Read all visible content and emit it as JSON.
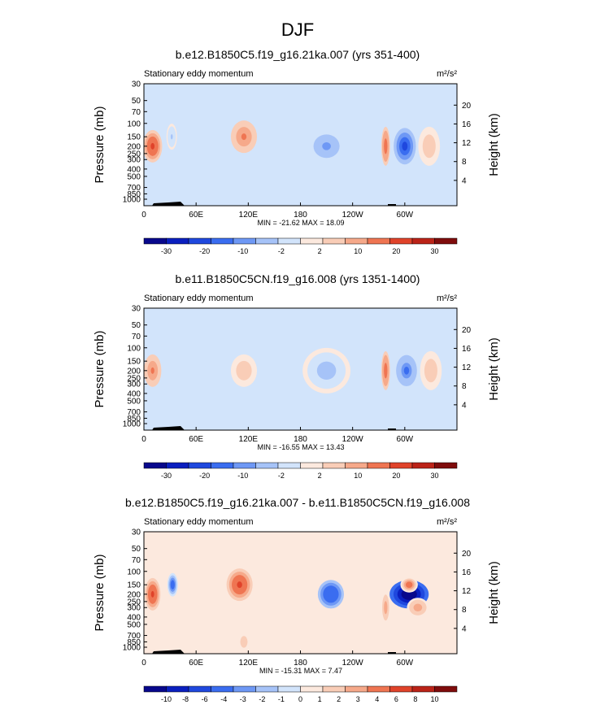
{
  "page_title": "DJF",
  "colors": {
    "scale": [
      "#08088c",
      "#0a1fbf",
      "#1f48de",
      "#3a6df0",
      "#6e98f5",
      "#a6c3f8",
      "#d2e4fb",
      "#fce9de",
      "#f9cdb7",
      "#f6a98a",
      "#ef7552",
      "#e0432a",
      "#bb2318",
      "#7f0c0c"
    ],
    "land": "#000000"
  },
  "chart_data": [
    {
      "type": "heatmap",
      "title": "b.e12.B1850C5.f19_g16.21ka.007 (yrs 351-400)",
      "subtitle_left": "Stationary eddy momentum",
      "units": "m²/s²",
      "ylabel": "Pressure (mb)",
      "ylabel_right": "Height (km)",
      "yticks": [
        "30",
        "50",
        "70",
        "100",
        "150",
        "200",
        "250",
        "300",
        "400",
        "500",
        "700",
        "850",
        "1000"
      ],
      "yticks_right": [
        "20",
        "16",
        "12",
        "8",
        "4"
      ],
      "xticks": [
        "0",
        "60E",
        "120E",
        "180",
        "120W",
        "60W"
      ],
      "stats": "MIN = -21.62  MAX =  18.09",
      "colorbar_labels": [
        "-30",
        "-20",
        "-10",
        "-2",
        "2",
        "10",
        "20",
        "30"
      ],
      "features": [
        {
          "lon": 10,
          "p": 200,
          "value": 18,
          "width_deg": 22,
          "height_lev": 2.5
        },
        {
          "lon": 32,
          "p": 150,
          "value": -6,
          "width_deg": 12,
          "height_lev": 2
        },
        {
          "lon": 115,
          "p": 150,
          "value": 12,
          "width_deg": 30,
          "height_lev": 2.5
        },
        {
          "lon": 210,
          "p": 200,
          "value": -11,
          "width_deg": 50,
          "height_lev": 3
        },
        {
          "lon": 278,
          "p": 200,
          "value": 14,
          "width_deg": 10,
          "height_lev": 3
        },
        {
          "lon": 300,
          "p": 200,
          "value": -21,
          "width_deg": 32,
          "height_lev": 3.5
        },
        {
          "lon": 328,
          "p": 200,
          "value": 5,
          "width_deg": 25,
          "height_lev": 3
        }
      ]
    },
    {
      "type": "heatmap",
      "title": "b.e11.B1850C5CN.f19_g16.008 (yrs 1351-1400)",
      "subtitle_left": "Stationary eddy momentum",
      "units": "m²/s²",
      "ylabel": "Pressure (mb)",
      "ylabel_right": "Height (km)",
      "yticks": [
        "30",
        "50",
        "70",
        "100",
        "150",
        "200",
        "250",
        "300",
        "400",
        "500",
        "700",
        "850",
        "1000"
      ],
      "yticks_right": [
        "20",
        "16",
        "12",
        "8",
        "4"
      ],
      "xticks": [
        "0",
        "60E",
        "120E",
        "180",
        "120W",
        "60W"
      ],
      "stats": "MIN = -16.55  MAX =  13.43",
      "colorbar_labels": [
        "-30",
        "-20",
        "-10",
        "-2",
        "2",
        "10",
        "20",
        "30"
      ],
      "features": [
        {
          "lon": 10,
          "p": 200,
          "value": 12,
          "width_deg": 20,
          "height_lev": 2.5
        },
        {
          "lon": 115,
          "p": 200,
          "value": 4,
          "width_deg": 30,
          "height_lev": 2.5
        },
        {
          "lon": 210,
          "p": 200,
          "value": -8,
          "width_deg": 55,
          "height_lev": 3.5
        },
        {
          "lon": 278,
          "p": 200,
          "value": 13,
          "width_deg": 10,
          "height_lev": 3
        },
        {
          "lon": 302,
          "p": 200,
          "value": -16,
          "width_deg": 30,
          "height_lev": 3
        },
        {
          "lon": 330,
          "p": 200,
          "value": 4,
          "width_deg": 25,
          "height_lev": 3
        }
      ]
    },
    {
      "type": "heatmap",
      "title": "b.e12.B1850C5.f19_g16.21ka.007 - b.e11.B1850C5CN.f19_g16.008",
      "subtitle_left": "Stationary eddy momentum",
      "units": "m²/s²",
      "ylabel": "Pressure (mb)",
      "ylabel_right": "Height (km)",
      "yticks": [
        "30",
        "50",
        "70",
        "100",
        "150",
        "200",
        "250",
        "300",
        "400",
        "500",
        "700",
        "850",
        "1000"
      ],
      "yticks_right": [
        "20",
        "16",
        "12",
        "8",
        "4"
      ],
      "xticks": [
        "0",
        "60E",
        "120E",
        "180",
        "120W",
        "60W"
      ],
      "stats": "MIN = -15.31  MAX =  7.47",
      "colorbar_labels": [
        "-10",
        "-8",
        "-6",
        "-4",
        "-3",
        "-2",
        "-1",
        "0",
        "1",
        "2",
        "3",
        "4",
        "6",
        "8",
        "10"
      ],
      "features": [
        {
          "lon": 10,
          "p": 200,
          "value": 7,
          "width_deg": 18,
          "height_lev": 2.5
        },
        {
          "lon": 33,
          "p": 150,
          "value": -4,
          "width_deg": 12,
          "height_lev": 1.8
        },
        {
          "lon": 110,
          "p": 150,
          "value": 7,
          "width_deg": 30,
          "height_lev": 2.5
        },
        {
          "lon": 215,
          "p": 200,
          "value": -5,
          "width_deg": 30,
          "height_lev": 2.2
        },
        {
          "lon": 305,
          "p": 200,
          "value": -15,
          "width_deg": 45,
          "height_lev": 2.2
        },
        {
          "lon": 305,
          "p": 150,
          "value": 5,
          "width_deg": 20,
          "height_lev": 1.2
        },
        {
          "lon": 315,
          "p": 300,
          "value": 3,
          "width_deg": 25,
          "height_lev": 1.5
        },
        {
          "lon": 278,
          "p": 300,
          "value": 3,
          "width_deg": 10,
          "height_lev": 2.5
        },
        {
          "lon": 115,
          "p": 850,
          "value": 2,
          "width_deg": 14,
          "height_lev": 1.5
        }
      ]
    }
  ]
}
